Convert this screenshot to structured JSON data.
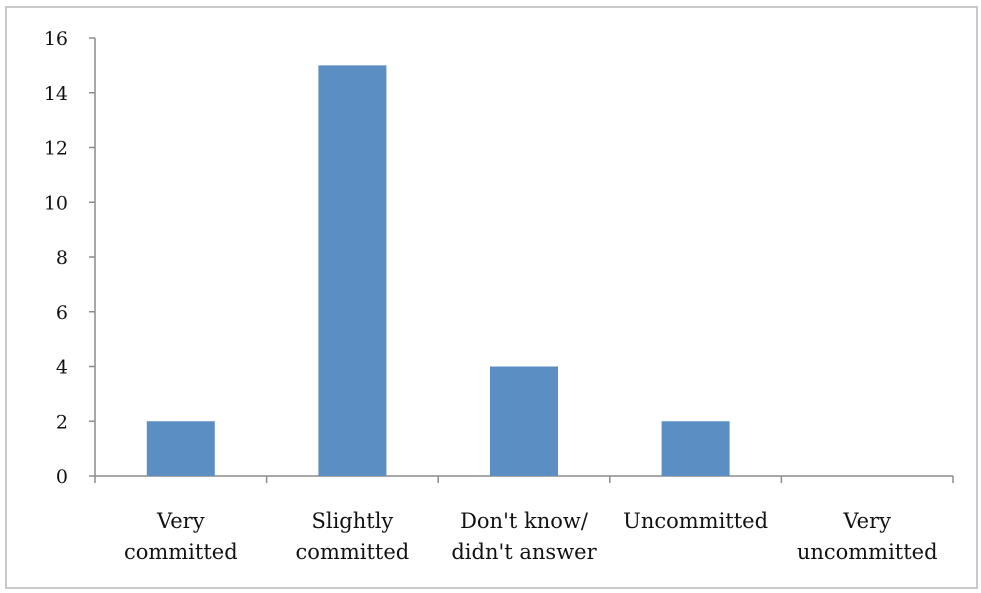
{
  "chart_data": {
    "type": "bar",
    "categories": [
      [
        "Very",
        "committed"
      ],
      [
        "Slightly",
        "committed"
      ],
      [
        "Don't know/",
        "didn't answer"
      ],
      [
        "Uncommitted"
      ],
      [
        "Very",
        "uncommitted"
      ]
    ],
    "values": [
      2,
      15,
      4,
      2,
      0
    ],
    "ylim": [
      0,
      16
    ],
    "yticks": [
      "0",
      "2",
      "4",
      "6",
      "8",
      "10",
      "12",
      "14",
      "16"
    ],
    "grid": false,
    "legend": "none",
    "colors": {
      "bar": "#5b8ec2",
      "axis": "#8c8c8c"
    }
  }
}
